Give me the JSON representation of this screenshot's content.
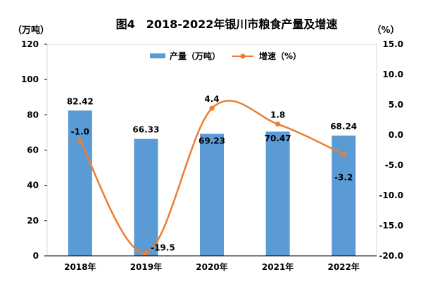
{
  "chart_data": {
    "type": "bar",
    "title": "图4　2018-2022年银川市粮食产量及增速",
    "categories": [
      "2018年",
      "2019年",
      "2020年",
      "2021年",
      "2022年"
    ],
    "series": [
      {
        "name": "产量（万吨）",
        "type": "bar",
        "axis": "left",
        "values": [
          82.42,
          66.33,
          69.23,
          70.47,
          68.24
        ],
        "labels": [
          "82.42",
          "66.33",
          "69.23",
          "70.47",
          "68.24"
        ]
      },
      {
        "name": "增速（%）",
        "type": "line",
        "smooth": true,
        "axis": "right",
        "values": [
          -1.0,
          -19.5,
          4.4,
          1.8,
          -3.2
        ],
        "labels": [
          "-1.0",
          "-19.5",
          "4.4",
          "1.8",
          "-3.2"
        ]
      }
    ],
    "y_left": {
      "unit_label": "（万吨）",
      "range": [
        0,
        120
      ],
      "ticks": [
        0,
        20,
        40,
        60,
        80,
        100,
        120
      ],
      "tick_labels": [
        "0",
        "20",
        "40",
        "60",
        "80",
        "100",
        "120"
      ]
    },
    "y_right": {
      "unit_label": "（%）",
      "range": [
        -20,
        15
      ],
      "ticks": [
        -20,
        -15,
        -10,
        -5,
        0,
        5,
        10,
        15
      ],
      "tick_labels": [
        "-20.0",
        "-15.0",
        "-10.0",
        "-5.0",
        "0.0",
        "5.0",
        "10.0",
        "15.0"
      ]
    },
    "legend": {
      "placement": "top-center"
    },
    "grid": false,
    "colors": {
      "bar": "#5b9bd5",
      "line": "#ed7d31",
      "axis": "#000000",
      "frame": "#d9d9d9"
    }
  }
}
